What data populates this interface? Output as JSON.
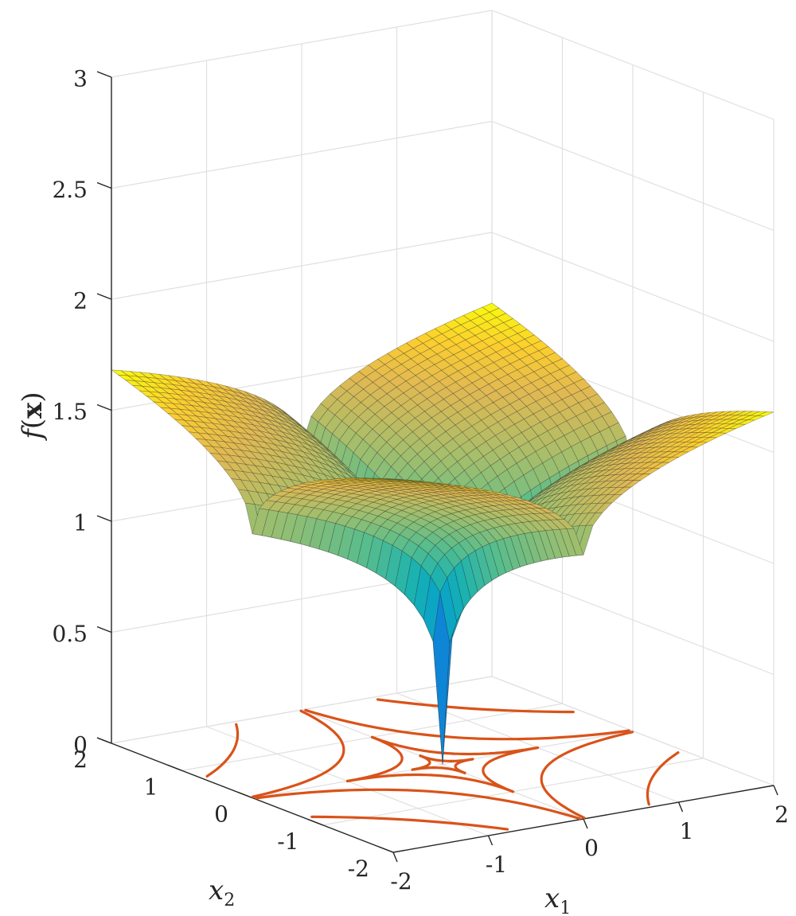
{
  "chart_data": {
    "type": "surface",
    "function": "f(x) = sqrt(sqrt(|x1|) + sqrt(|x2|))",
    "x1": {
      "label": "x",
      "sub": "1",
      "ticks": [
        "-2",
        "-1",
        "0",
        "1",
        "2"
      ],
      "lim": [
        -2,
        2
      ]
    },
    "x2": {
      "label": "x",
      "sub": "2",
      "ticks": [
        "-2",
        "-1",
        "0",
        "1",
        "2"
      ],
      "lim": [
        -2,
        2
      ]
    },
    "z": {
      "label_italic": "f",
      "label_paren_open": "(",
      "label_bold": "x",
      "label_paren_close": ")",
      "ticks": [
        "0",
        "0.5",
        "1",
        "1.5",
        "2",
        "2.5",
        "3"
      ],
      "lim": [
        0,
        3
      ]
    },
    "surface": {
      "colormap": "parula",
      "grid_n": 41
    },
    "contours": {
      "color": "#D95319",
      "levels": [
        0.75,
        1.0,
        1.25,
        1.5,
        1.75
      ],
      "plane": "z=0"
    },
    "grid": true
  }
}
